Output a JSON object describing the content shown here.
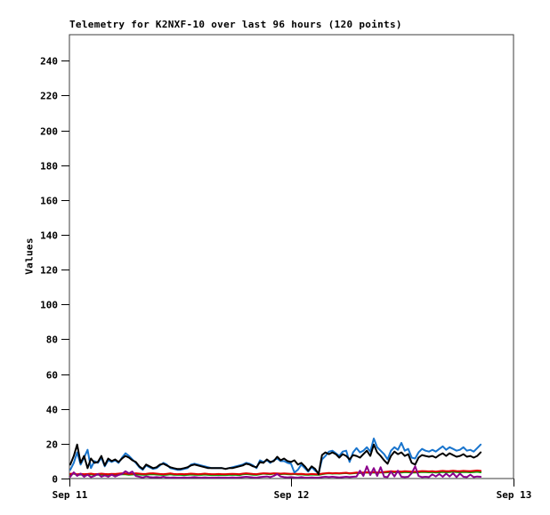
{
  "frame": {
    "background_color": "#ffffff",
    "border_color": "#3c3c3c",
    "tick_color": "#000000"
  },
  "chart_data": {
    "type": "line",
    "title": "Telemetry for K2NXF-10 over last 96 hours (120 points)",
    "ylabel": "Values",
    "xlabel": "",
    "ylim": [
      0,
      255
    ],
    "yticks": [
      0,
      20,
      40,
      60,
      80,
      100,
      120,
      140,
      160,
      180,
      200,
      220,
      240
    ],
    "xticks": [
      {
        "label": "Sep 11",
        "frac": 0.0
      },
      {
        "label": "Sep 12",
        "frac": 0.4995
      },
      {
        "label": "Sep 13",
        "frac": 1.0
      }
    ],
    "grid": false,
    "legend_position": "none",
    "points_per_series": 120,
    "data_end_frac": 0.926,
    "series": [
      {
        "name": "green",
        "color": "#00a000",
        "values": [
          2.2,
          2.8,
          2,
          2.3,
          2.1,
          2.2,
          2.4,
          2.1,
          2.2,
          2.3,
          2.2,
          2.1,
          2.2,
          2.3,
          2.4,
          2.5,
          2.4,
          2.2,
          2.3,
          2.4,
          2.3,
          2.2,
          2.2,
          2.4,
          2.5,
          2.3,
          2.2,
          2.1,
          2.2,
          2.4,
          2.2,
          2.1,
          2.1,
          2,
          2.1,
          2.3,
          2.2,
          2.1,
          2.1,
          2.3,
          2.1,
          2,
          2,
          2.1,
          2,
          2,
          2.1,
          2.2,
          2.1,
          2,
          2.4,
          2.6,
          2.4,
          2.2,
          2.1,
          2.5,
          2.8,
          2.6,
          2.5,
          2.8,
          2.7,
          2.5,
          2.7,
          2.5,
          2.4,
          2.6,
          2.3,
          2.4,
          2.2,
          2.1,
          2.3,
          2.2,
          2.1,
          2.5,
          2.8,
          3,
          2.8,
          2.9,
          2.8,
          3,
          3.1,
          2.8,
          3,
          3.2,
          3.1,
          3.3,
          3.4,
          3.2,
          3.5,
          3.3,
          3.4,
          3.5,
          3.6,
          3.8,
          3.6,
          3.7,
          3.5,
          3.7,
          3.6,
          3.5,
          3.4,
          3.6,
          3.8,
          3.7,
          3.6,
          3.7,
          3.5,
          3.6,
          3.8,
          3.6,
          3.7,
          3.9,
          3.7,
          3.6,
          3.8,
          3.7,
          3.6,
          3.7,
          3.9,
          3.6
        ]
      },
      {
        "name": "red",
        "color": "#e00000",
        "values": [
          2.6,
          3,
          2.4,
          2.7,
          2.5,
          2.6,
          2.8,
          2.5,
          2.6,
          2.8,
          2.6,
          2.5,
          2.7,
          2.6,
          2.8,
          3,
          2.8,
          2.6,
          2.7,
          3,
          2.8,
          2.6,
          2.7,
          2.9,
          3,
          2.8,
          2.6,
          2.5,
          2.7,
          2.9,
          2.6,
          2.5,
          2.6,
          2.5,
          2.6,
          2.8,
          2.7,
          2.5,
          2.6,
          2.8,
          2.6,
          2.5,
          2.5,
          2.6,
          2.5,
          2.5,
          2.6,
          2.7,
          2.6,
          2.5,
          2.8,
          3,
          2.8,
          2.6,
          2.5,
          2.8,
          3,
          2.9,
          2.8,
          3,
          2.9,
          2.8,
          2.9,
          2.8,
          2.7,
          2.8,
          2.6,
          2.7,
          2.5,
          2.4,
          2.6,
          2.5,
          2.4,
          2.8,
          3,
          3.2,
          3,
          3.1,
          3,
          3.2,
          3.3,
          3,
          3.2,
          3.4,
          3.3,
          3.5,
          3.6,
          3.4,
          3.7,
          3.5,
          3.6,
          3.8,
          4,
          4.2,
          4,
          4.1,
          4,
          4.2,
          4.1,
          4,
          3.9,
          4.1,
          4.3,
          4.2,
          4.1,
          4.2,
          4,
          4.2,
          4.4,
          4.2,
          4.3,
          4.5,
          4.3,
          4.2,
          4.4,
          4.3,
          4.2,
          4.4,
          4.6,
          4.4
        ]
      },
      {
        "name": "blue",
        "color": "#1874cd",
        "values": [
          5,
          9,
          15,
          8,
          12,
          16.5,
          6,
          10,
          9,
          12,
          7,
          10.5,
          9.5,
          10.5,
          9,
          12,
          14.5,
          13,
          11,
          9,
          6.5,
          5,
          7.5,
          6.5,
          5.5,
          6,
          7.5,
          9,
          8,
          6,
          5.5,
          5,
          5,
          5.5,
          6,
          8,
          8.5,
          8,
          7.5,
          7,
          6.5,
          6,
          6,
          6,
          6,
          5.5,
          6,
          6.5,
          7,
          7.5,
          8,
          9,
          8.5,
          7.5,
          6,
          10.5,
          9.5,
          10.5,
          9,
          10.5,
          11.5,
          10,
          10,
          9,
          8.5,
          3.5,
          5,
          8,
          6,
          4,
          6.5,
          4.5,
          3,
          11,
          13,
          15.5,
          16,
          14.5,
          13,
          15.5,
          16,
          9.5,
          15,
          17.5,
          15,
          16,
          18,
          15.5,
          23,
          18,
          16,
          14,
          11,
          16,
          18,
          16.5,
          20.5,
          16,
          17,
          12,
          11.5,
          15,
          17,
          16,
          15.5,
          16.5,
          15.5,
          17,
          18.5,
          16.5,
          18,
          17,
          16,
          16.5,
          18,
          16,
          16.5,
          15.5,
          17.5,
          19.5
        ]
      },
      {
        "name": "purple",
        "color": "#8b008b",
        "values": [
          1,
          3.6,
          1.5,
          2.8,
          1,
          2.2,
          0.8,
          1.5,
          2.6,
          1,
          1.8,
          1,
          2.2,
          1.2,
          2,
          2.6,
          4.2,
          3,
          4,
          1.5,
          1,
          0.6,
          1.2,
          0.8,
          0.6,
          0.8,
          0.6,
          1,
          0.6,
          0.5,
          0.6,
          0.5,
          0.5,
          0.6,
          0.5,
          0.6,
          0.8,
          0.6,
          0.5,
          0.6,
          0.5,
          0.5,
          0.5,
          0.6,
          0.5,
          0.5,
          0.5,
          0.6,
          0.5,
          0.6,
          0.8,
          1,
          0.8,
          0.6,
          0.5,
          0.8,
          1,
          1.2,
          0.8,
          1.5,
          2.6,
          1.2,
          0.8,
          0.6,
          0.8,
          0.6,
          0.5,
          0.8,
          0.5,
          0.5,
          0.6,
          0.5,
          0.5,
          0.8,
          1,
          0.8,
          1,
          0.8,
          0.6,
          0.8,
          1,
          0.8,
          1,
          1.2,
          4.5,
          1.5,
          7,
          2,
          6,
          1.5,
          6.5,
          1,
          0.8,
          4,
          1.2,
          4.5,
          1,
          0.8,
          1,
          3,
          7,
          1.5,
          0.8,
          1,
          0.8,
          2.4,
          1.2,
          2.6,
          1,
          2.8,
          1.2,
          3,
          0.8,
          2.8,
          1,
          0.8,
          2.2,
          0.8,
          1.2,
          1
        ]
      },
      {
        "name": "black",
        "color": "#000000",
        "values": [
          8,
          13,
          19.5,
          9,
          13,
          6,
          11.5,
          9,
          9.5,
          13,
          7.5,
          11.5,
          10,
          11,
          9.5,
          11.5,
          13,
          12,
          10.5,
          9.5,
          7,
          5.5,
          8,
          7,
          6,
          6.5,
          8,
          8.5,
          7.5,
          6.5,
          6,
          5.5,
          5.5,
          6,
          6.5,
          7.5,
          8,
          7.5,
          7,
          6.5,
          6,
          6,
          6,
          6,
          6,
          5.5,
          6,
          6,
          6.5,
          7,
          7.5,
          8.5,
          8,
          7,
          6.5,
          9.5,
          9,
          11,
          9.5,
          10,
          12.5,
          10.5,
          11.5,
          10,
          9.5,
          10.5,
          8,
          9,
          7,
          4.5,
          7,
          5.5,
          2.5,
          13.5,
          15,
          14,
          15,
          14,
          12,
          14,
          13,
          11,
          13.5,
          13,
          12,
          14,
          16,
          13,
          19.5,
          15,
          13,
          10.5,
          8.5,
          13,
          15.5,
          14,
          15,
          13,
          14,
          9,
          8,
          12,
          13.5,
          13,
          12.5,
          13,
          12,
          13.5,
          14.5,
          13,
          14.5,
          13.5,
          12.5,
          13,
          14,
          12.5,
          13,
          12,
          13,
          15
        ]
      }
    ]
  }
}
